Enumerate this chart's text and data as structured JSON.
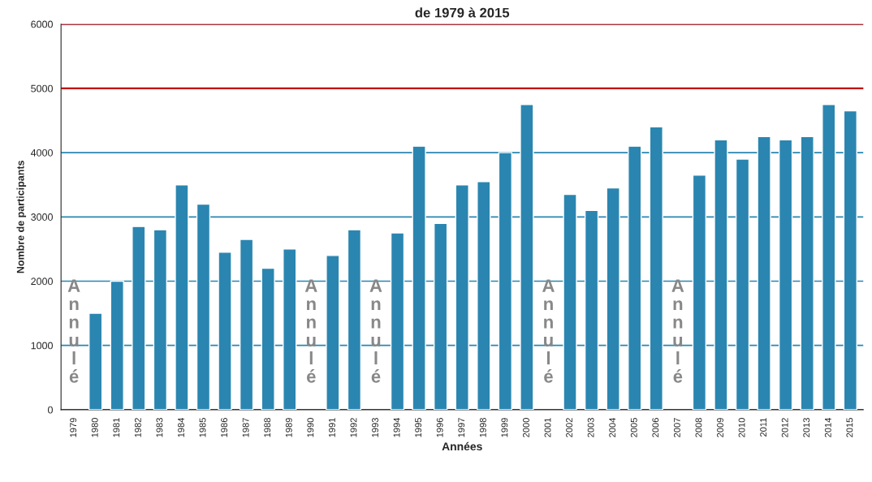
{
  "chart_data": {
    "type": "bar",
    "title": "de 1979 à 2015",
    "xlabel": "Années",
    "ylabel": "Nombre de participants",
    "categories": [
      "1979",
      "1980",
      "1981",
      "1982",
      "1983",
      "1984",
      "1985",
      "1986",
      "1987",
      "1988",
      "1989",
      "1990",
      "1991",
      "1992",
      "1993",
      "1994",
      "1995",
      "1996",
      "1997",
      "1998",
      "1999",
      "2000",
      "2001",
      "2002",
      "2003",
      "2004",
      "2005",
      "2006",
      "2007",
      "2008",
      "2009",
      "2010",
      "2011",
      "2012",
      "2013",
      "2014",
      "2015"
    ],
    "values": [
      null,
      1500,
      2000,
      2850,
      2800,
      3500,
      3200,
      2450,
      2650,
      2200,
      2500,
      null,
      2400,
      2800,
      null,
      2750,
      4100,
      2900,
      3500,
      3550,
      4000,
      4750,
      null,
      3350,
      3100,
      3450,
      4100,
      4400,
      null,
      3650,
      4200,
      3900,
      4250,
      4200,
      4250,
      4750,
      4650
    ],
    "color": "#2a86b0",
    "ylim": [
      0,
      6000
    ],
    "yticks": [
      0,
      1000,
      2000,
      3000,
      4000,
      5000,
      6000
    ],
    "grid": "y",
    "ref_lines": [
      {
        "axis": "y",
        "value": 5000,
        "color": "#c00000"
      },
      {
        "axis": "y",
        "value": 6000,
        "color": "#c00000"
      }
    ],
    "annotations": [
      "Annulé",
      "Annulé",
      "Annulé",
      "Annulé",
      "Annulé"
    ]
  }
}
